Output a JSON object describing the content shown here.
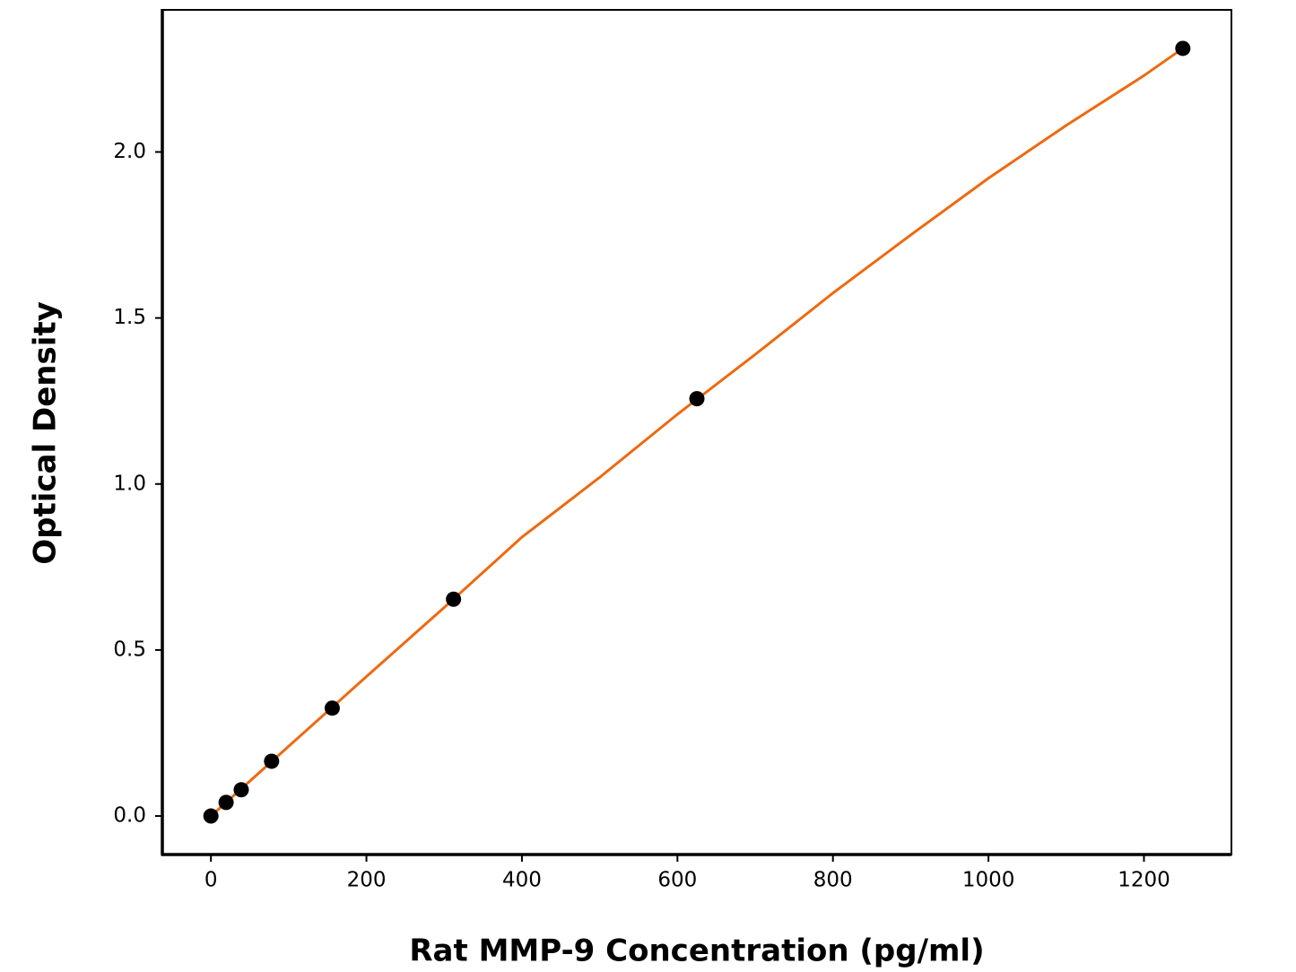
{
  "chart_data": {
    "type": "scatter",
    "x_label": "Rat MMP-9 Concentration (pg/ml)",
    "y_label": "Optical Density",
    "points": {
      "color": "#000000",
      "x": [
        0,
        19.5,
        39,
        78,
        156,
        312,
        625,
        1250
      ],
      "values": [
        0,
        0.041,
        0.079,
        0.165,
        0.325,
        0.653,
        1.257,
        2.312
      ]
    },
    "fit": {
      "color": "#ec6a10",
      "x": [
        0,
        100,
        200,
        300,
        400,
        500,
        600,
        700,
        800,
        900,
        1000,
        1100,
        1200,
        1250
      ],
      "values": [
        0,
        0.21,
        0.42,
        0.628,
        0.84,
        1.02,
        1.21,
        1.39,
        1.575,
        1.75,
        1.921,
        2.08,
        2.23,
        2.312
      ]
    },
    "xlim": [
      -62.5,
      1312.5
    ],
    "xticks": [
      0,
      200,
      400,
      600,
      800,
      1000,
      1200
    ],
    "ylim": [
      -0.116,
      2.428
    ],
    "yticks": [
      {
        "value": 0,
        "label": "0.0"
      },
      {
        "value": 0.5,
        "label": "0.5"
      },
      {
        "value": 1,
        "label": "1.0"
      },
      {
        "value": 1.5,
        "label": "1.5"
      },
      {
        "value": 2,
        "label": "2.0"
      }
    ]
  }
}
